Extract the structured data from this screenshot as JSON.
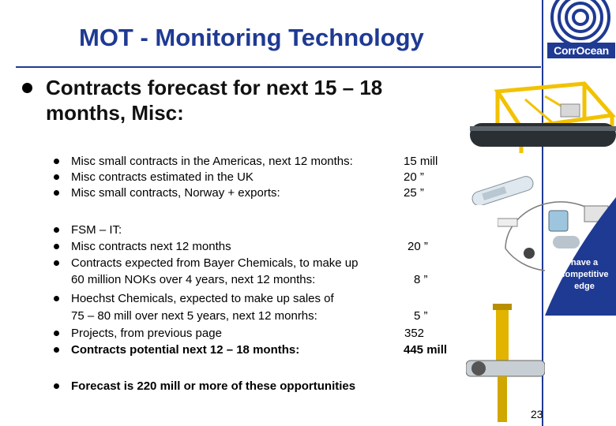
{
  "slide": {
    "title": "MOT - Monitoring Technology",
    "main_bullet": {
      "line1": "Contracts forecast for next 15 – 18",
      "line2": "months, Misc:"
    },
    "items": [
      {
        "text": "Misc small contracts in the Americas, next 12 months:",
        "value": "15 mill"
      },
      {
        "text": "Misc contracts estimated in the UK",
        "value": "20   ”"
      },
      {
        "text": "Misc small contracts, Norway + exports:",
        "value": "25   ”"
      },
      {
        "text": "FSM – IT:"
      },
      {
        "text": "Misc contracts next 12 months",
        "value": "20   ”"
      },
      {
        "text": "Contracts expected from Bayer Chemicals, to make up",
        "text2": "60 million NOKs over  4 years, next 12 months:",
        "value": "8   ”"
      },
      {
        "text": "Hoechst Chemicals, expected to make up sales of",
        "text2": "75 – 80 mill over next 5 years, next 12 monrhs:",
        "value": "5   ”"
      },
      {
        "text": "Projects, from previous page",
        "value": "352"
      },
      {
        "text": "Contracts potential next 12 – 18 months:",
        "value": "445  mill"
      },
      {
        "text": "Forecast is 220  mill or more of these opportunities"
      }
    ],
    "page_number": "23"
  },
  "logo": {
    "text": "CorrOcean",
    "icon": "corrocean-spiral-logo-icon"
  },
  "side_text": {
    "line1": "have a",
    "line2": "competitive",
    "line3": "edge"
  },
  "colors": {
    "title": "#1f3a93",
    "logo_blue": "#1f3a93",
    "equipment_yellow": "#f2c200"
  }
}
